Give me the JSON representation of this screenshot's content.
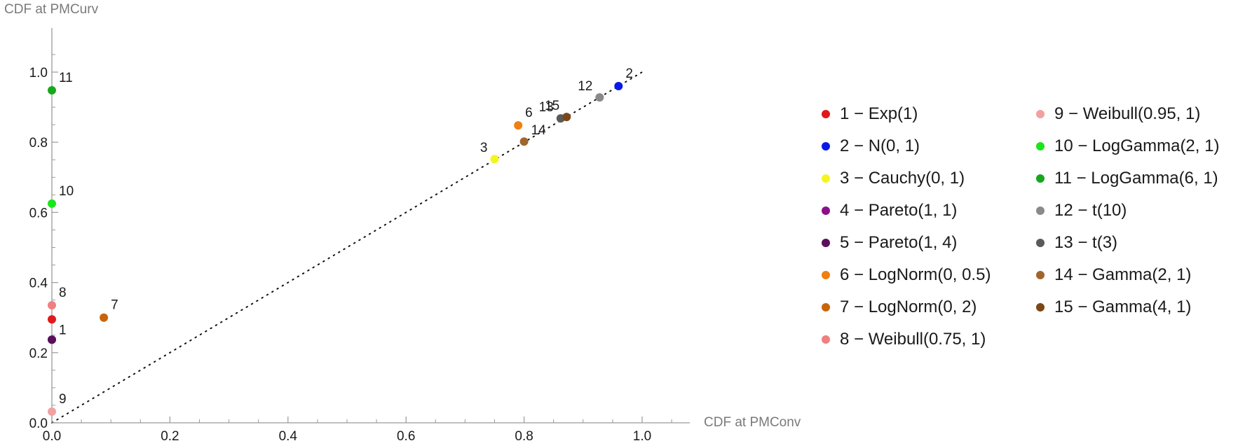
{
  "chart_data": {
    "type": "scatter",
    "xlabel": "CDF at PMConv",
    "ylabel": "CDF at PMCurv",
    "xlim": [
      0,
      1.1
    ],
    "ylim": [
      0,
      1.1
    ],
    "x_ticks": [
      0.0,
      0.2,
      0.4,
      0.6,
      0.8,
      1.0
    ],
    "y_ticks": [
      0.0,
      0.2,
      0.4,
      0.6,
      0.8,
      1.0
    ],
    "x_tick_labels": [
      "0.0",
      "0.2",
      "0.4",
      "0.6",
      "0.8",
      "1.0"
    ],
    "y_tick_labels": [
      "0.0",
      "0.2",
      "0.4",
      "0.6",
      "0.8",
      "1.0"
    ],
    "reference_line": {
      "style": "dotted",
      "from": [
        0,
        0
      ],
      "to": [
        1,
        1
      ]
    },
    "legend_position": "right",
    "points": [
      {
        "id": "1",
        "label": "1 − Exp(1)",
        "x": 0.0,
        "y": 0.295,
        "color": "#e0191c"
      },
      {
        "id": "2",
        "label": "2 − N(0, 1)",
        "x": 0.96,
        "y": 0.96,
        "color": "#0a1ae6"
      },
      {
        "id": "3",
        "label": "3 − Cauchy(0, 1)",
        "x": 0.75,
        "y": 0.752,
        "color": "#f5f51e"
      },
      {
        "id": "4",
        "label": "4 − Pareto(1, 1)",
        "x": 0.0,
        "y": 0.237,
        "color": "#8a108a"
      },
      {
        "id": "5",
        "label": "5 − Pareto(1, 4)",
        "x": 0.0,
        "y": 0.237,
        "color": "#5a0f5a"
      },
      {
        "id": "6",
        "label": "6 − LogNorm(0, 0.5)",
        "x": 0.79,
        "y": 0.848,
        "color": "#f07f12"
      },
      {
        "id": "7",
        "label": "7 − LogNorm(0, 2)",
        "x": 0.088,
        "y": 0.3,
        "color": "#c8650a"
      },
      {
        "id": "8",
        "label": "8 − Weibull(0.75, 1)",
        "x": 0.0,
        "y": 0.335,
        "color": "#f08080"
      },
      {
        "id": "9",
        "label": "9 − Weibull(0.95, 1)",
        "x": 0.0,
        "y": 0.032,
        "color": "#f2a0a0"
      },
      {
        "id": "10",
        "label": "10 − LogGamma(2, 1)",
        "x": 0.0,
        "y": 0.625,
        "color": "#1ae61a"
      },
      {
        "id": "11",
        "label": "11 − LogGamma(6, 1)",
        "x": 0.0,
        "y": 0.948,
        "color": "#16a81c"
      },
      {
        "id": "12",
        "label": "12 − t(10)",
        "x": 0.928,
        "y": 0.928,
        "color": "#8a8a8a"
      },
      {
        "id": "13",
        "label": "13 − t(3)",
        "x": 0.862,
        "y": 0.868,
        "color": "#5a5a5a"
      },
      {
        "id": "14",
        "label": "14 − Gamma(2, 1)",
        "x": 0.8,
        "y": 0.802,
        "color": "#a0652e"
      },
      {
        "id": "15",
        "label": "15 − Gamma(4, 1)",
        "x": 0.872,
        "y": 0.872,
        "color": "#7a4818"
      }
    ],
    "point_labels": [
      {
        "text": "1",
        "x": 0.0,
        "y": 0.237
      },
      {
        "text": "2",
        "x": 0.96,
        "y": 0.96
      },
      {
        "text": "3",
        "x": 0.75,
        "y": 0.752
      },
      {
        "text": "6",
        "x": 0.79,
        "y": 0.848
      },
      {
        "text": "7",
        "x": 0.088,
        "y": 0.3
      },
      {
        "text": "8",
        "x": 0.0,
        "y": 0.335
      },
      {
        "text": "9",
        "x": 0.0,
        "y": 0.032
      },
      {
        "text": "10",
        "x": 0.0,
        "y": 0.625
      },
      {
        "text": "11",
        "x": 0.0,
        "y": 0.948
      },
      {
        "text": "12",
        "x": 0.928,
        "y": 0.928
      },
      {
        "text": "13",
        "x": 0.862,
        "y": 0.868
      },
      {
        "text": "14",
        "x": 0.8,
        "y": 0.802
      },
      {
        "text": "15",
        "x": 0.872,
        "y": 0.872
      }
    ]
  },
  "legend": {
    "column_1": [
      {
        "label": "1 − Exp(1)",
        "color": "#e0191c"
      },
      {
        "label": "2 − N(0, 1)",
        "color": "#0a1ae6"
      },
      {
        "label": "3 − Cauchy(0, 1)",
        "color": "#f5f51e"
      },
      {
        "label": "4 − Pareto(1, 1)",
        "color": "#8a108a"
      },
      {
        "label": "5 − Pareto(1, 4)",
        "color": "#5a0f5a"
      },
      {
        "label": "6 − LogNorm(0, 0.5)",
        "color": "#f07f12"
      },
      {
        "label": "7 − LogNorm(0, 2)",
        "color": "#c8650a"
      },
      {
        "label": "8 − Weibull(0.75, 1)",
        "color": "#f08080"
      }
    ],
    "column_2": [
      {
        "label": "9 − Weibull(0.95, 1)",
        "color": "#f2a0a0"
      },
      {
        "label": "10 − LogGamma(2, 1)",
        "color": "#1ae61a"
      },
      {
        "label": "11 − LogGamma(6, 1)",
        "color": "#16a81c"
      },
      {
        "label": "12 − t(10)",
        "color": "#8a8a8a"
      },
      {
        "label": "13 − t(3)",
        "color": "#5a5a5a"
      },
      {
        "label": "14 − Gamma(2, 1)",
        "color": "#a0652e"
      },
      {
        "label": "15 − Gamma(4, 1)",
        "color": "#7a4818"
      }
    ]
  }
}
